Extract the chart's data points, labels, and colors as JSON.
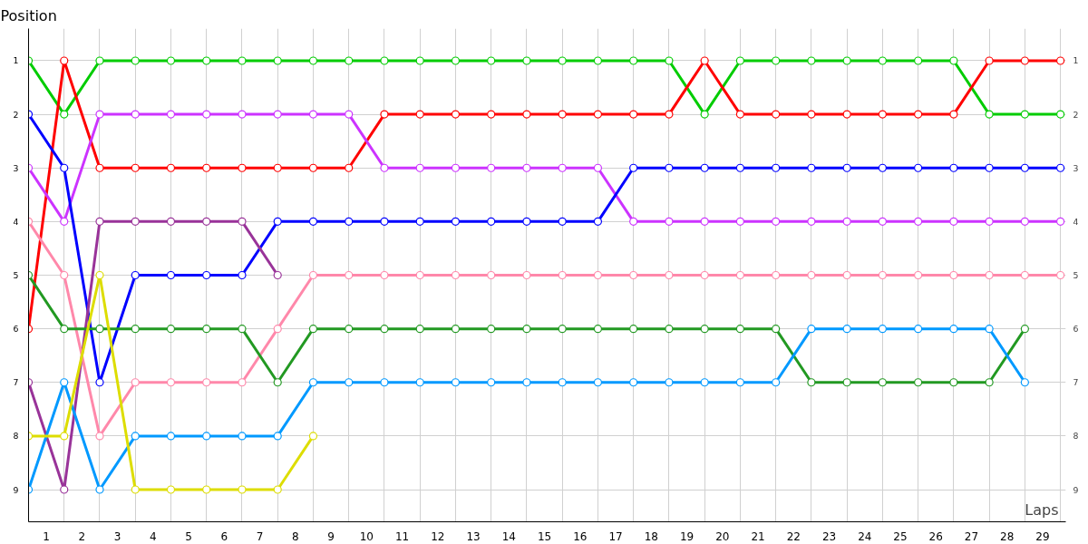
{
  "chart_data": {
    "type": "line",
    "ylabel": "Position",
    "xlabel": "Laps",
    "x": [
      0,
      1,
      2,
      3,
      4,
      5,
      6,
      7,
      8,
      9,
      10,
      11,
      12,
      13,
      14,
      15,
      16,
      17,
      18,
      19,
      20,
      21,
      22,
      23,
      24,
      25,
      26,
      27,
      28,
      29
    ],
    "xlim": [
      0,
      29.15
    ],
    "xticks": [
      {
        "value": 0,
        "label": null
      },
      {
        "value": 0.5,
        "label": "1"
      },
      {
        "value": 1,
        "label": null
      },
      {
        "value": 1.5,
        "label": "2"
      },
      {
        "value": 2,
        "label": null
      },
      {
        "value": 2.5,
        "label": "3"
      },
      {
        "value": 3,
        "label": null
      },
      {
        "value": 3.5,
        "label": "4"
      },
      {
        "value": 4,
        "label": null
      },
      {
        "value": 4.5,
        "label": "5"
      },
      {
        "value": 5,
        "label": null
      },
      {
        "value": 5.5,
        "label": "6"
      },
      {
        "value": 6,
        "label": null
      },
      {
        "value": 6.5,
        "label": "7"
      },
      {
        "value": 7,
        "label": null
      },
      {
        "value": 7.5,
        "label": "8"
      },
      {
        "value": 8,
        "label": null
      },
      {
        "value": 8.5,
        "label": "9"
      },
      {
        "value": 9,
        "label": null
      },
      {
        "value": 9.5,
        "label": "10"
      },
      {
        "value": 10,
        "label": null
      },
      {
        "value": 10.5,
        "label": "11"
      },
      {
        "value": 11,
        "label": null
      },
      {
        "value": 11.5,
        "label": "12"
      },
      {
        "value": 12,
        "label": null
      },
      {
        "value": 12.5,
        "label": "13"
      },
      {
        "value": 13,
        "label": null
      },
      {
        "value": 13.5,
        "label": "14"
      },
      {
        "value": 14,
        "label": null
      },
      {
        "value": 14.5,
        "label": "15"
      },
      {
        "value": 15,
        "label": null
      },
      {
        "value": 15.5,
        "label": "16"
      },
      {
        "value": 16,
        "label": null
      },
      {
        "value": 16.5,
        "label": "17"
      },
      {
        "value": 17,
        "label": null
      },
      {
        "value": 17.5,
        "label": "18"
      },
      {
        "value": 18,
        "label": null
      },
      {
        "value": 18.5,
        "label": "19"
      },
      {
        "value": 19,
        "label": null
      },
      {
        "value": 19.5,
        "label": "20"
      },
      {
        "value": 20,
        "label": null
      },
      {
        "value": 20.5,
        "label": "21"
      },
      {
        "value": 21,
        "label": null
      },
      {
        "value": 21.5,
        "label": "22"
      },
      {
        "value": 22,
        "label": null
      },
      {
        "value": 22.5,
        "label": "23"
      },
      {
        "value": 23,
        "label": null
      },
      {
        "value": 23.5,
        "label": "24"
      },
      {
        "value": 24,
        "label": null
      },
      {
        "value": 24.5,
        "label": "25"
      },
      {
        "value": 25,
        "label": null
      },
      {
        "value": 25.5,
        "label": "26"
      },
      {
        "value": 26,
        "label": null
      },
      {
        "value": 26.5,
        "label": "27"
      },
      {
        "value": 27,
        "label": null
      },
      {
        "value": 27.5,
        "label": "28"
      },
      {
        "value": 28,
        "label": null
      },
      {
        "value": 28.5,
        "label": "29"
      },
      {
        "value": 29,
        "label": null
      }
    ],
    "ylim": [
      9.6,
      0.4
    ],
    "yticks": [
      1,
      2,
      3,
      4,
      5,
      6,
      7,
      8,
      9
    ],
    "y2lim": [
      9.6,
      0.4
    ],
    "y2ticks": [
      1,
      2,
      3,
      4,
      5,
      6,
      7,
      8,
      9
    ],
    "grid": true,
    "marker": "circle",
    "line_style": "solid",
    "series": [
      {
        "color": "#00cc00",
        "values": [
          1,
          2,
          1,
          1,
          1,
          1,
          1,
          1,
          1,
          1,
          1,
          1,
          1,
          1,
          1,
          1,
          1,
          1,
          1,
          2,
          1,
          1,
          1,
          1,
          1,
          1,
          1,
          2,
          2,
          2
        ]
      },
      {
        "color": "#ff0000",
        "values": [
          6,
          1,
          3,
          3,
          3,
          3,
          3,
          3,
          3,
          3,
          2,
          2,
          2,
          2,
          2,
          2,
          2,
          2,
          2,
          1,
          2,
          2,
          2,
          2,
          2,
          2,
          2,
          1,
          1,
          1
        ]
      },
      {
        "color": "#cc33ff",
        "values": [
          3,
          4,
          2,
          2,
          2,
          2,
          2,
          2,
          2,
          2,
          3,
          3,
          3,
          3,
          3,
          3,
          3,
          4,
          4,
          4,
          4,
          4,
          4,
          4,
          4,
          4,
          4,
          4,
          4,
          4
        ]
      },
      {
        "color": "#0000ff",
        "values": [
          2,
          3,
          7,
          5,
          5,
          5,
          5,
          4,
          4,
          4,
          4,
          4,
          4,
          4,
          4,
          4,
          4,
          3,
          3,
          3,
          3,
          3,
          3,
          3,
          3,
          3,
          3,
          3,
          3,
          3
        ]
      },
      {
        "color": "#993399",
        "x": [
          0,
          1,
          2,
          3,
          4,
          5,
          6,
          7
        ],
        "values": [
          7,
          9,
          4,
          4,
          4,
          4,
          4,
          5
        ]
      },
      {
        "color": "#ff88aa",
        "values": [
          4,
          5,
          8,
          7,
          7,
          7,
          7,
          6,
          5,
          5,
          5,
          5,
          5,
          5,
          5,
          5,
          5,
          5,
          5,
          5,
          5,
          5,
          5,
          5,
          5,
          5,
          5,
          5,
          5,
          5
        ]
      },
      {
        "color": "#229922",
        "x": [
          0,
          1,
          2,
          3,
          4,
          5,
          6,
          7,
          8,
          9,
          10,
          11,
          12,
          13,
          14,
          15,
          16,
          17,
          18,
          19,
          20,
          21,
          22,
          23,
          24,
          25,
          26,
          27,
          28
        ],
        "values": [
          5,
          6,
          6,
          6,
          6,
          6,
          6,
          7,
          6,
          6,
          6,
          6,
          6,
          6,
          6,
          6,
          6,
          6,
          6,
          6,
          6,
          6,
          7,
          7,
          7,
          7,
          7,
          7,
          6
        ]
      },
      {
        "color": "#0099ff",
        "x": [
          0,
          1,
          2,
          3,
          4,
          5,
          6,
          7,
          8,
          9,
          10,
          11,
          12,
          13,
          14,
          15,
          16,
          17,
          18,
          19,
          20,
          21,
          22,
          23,
          24,
          25,
          26,
          27,
          28
        ],
        "values": [
          9,
          7,
          9,
          8,
          8,
          8,
          8,
          8,
          7,
          7,
          7,
          7,
          7,
          7,
          7,
          7,
          7,
          7,
          7,
          7,
          7,
          7,
          6,
          6,
          6,
          6,
          6,
          6,
          7
        ]
      },
      {
        "color": "#dddd00",
        "x": [
          0,
          1,
          2,
          3,
          4,
          5,
          6,
          7,
          8
        ],
        "values": [
          8,
          8,
          5,
          9,
          9,
          9,
          9,
          9,
          8
        ]
      }
    ]
  }
}
